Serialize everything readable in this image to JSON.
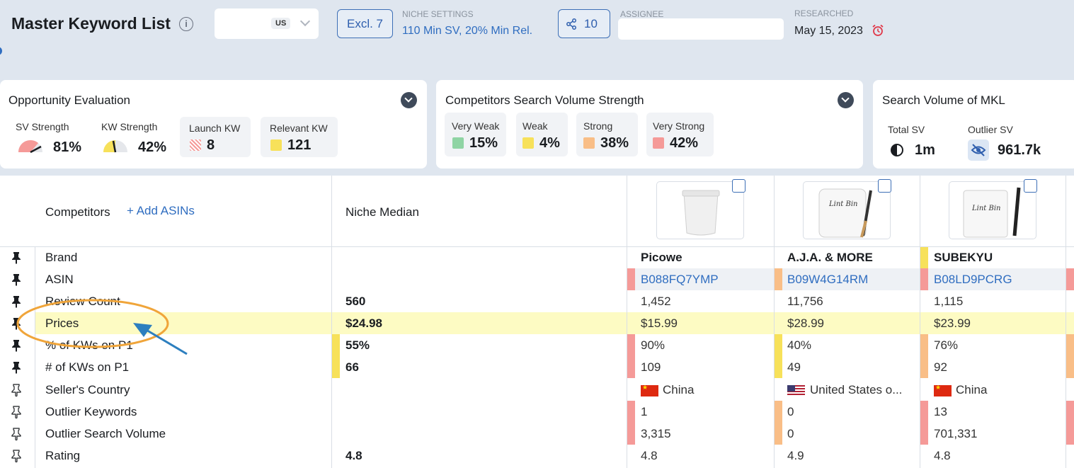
{
  "header": {
    "title": "Master Keyword List",
    "market_badge": "US",
    "excl_label": "Excl. 7",
    "niche_settings_label": "NICHE SETTINGS",
    "niche_settings_value": "110 Min SV, 20% Min Rel.",
    "share_count": "10",
    "assignee_label": "ASSIGNEE",
    "assignee_value": "",
    "researched_label": "RESEARCHED",
    "researched_date": "May 15, 2023"
  },
  "opportunity": {
    "title": "Opportunity Evaluation",
    "sv_strength_label": "SV Strength",
    "sv_strength_value": "81%",
    "kw_strength_label": "KW Strength",
    "kw_strength_value": "42%",
    "launch_kw_label": "Launch KW",
    "launch_kw_value": "8",
    "relevant_kw_label": "Relevant KW",
    "relevant_kw_value": "121"
  },
  "competitors_sv": {
    "title": "Competitors Search Volume Strength",
    "items": [
      {
        "label": "Very Weak",
        "value": "15%",
        "color": "#8fd4a4"
      },
      {
        "label": "Weak",
        "value": "4%",
        "color": "#f7e15a"
      },
      {
        "label": "Strong",
        "value": "38%",
        "color": "#f9be87"
      },
      {
        "label": "Very Strong",
        "value": "42%",
        "color": "#f59a98"
      }
    ]
  },
  "sv_mkl": {
    "title": "Search Volume of MKL",
    "total_label": "Total SV",
    "total_value": "1m",
    "outlier_label": "Outlier SV",
    "outlier_value": "961.7k"
  },
  "table": {
    "competitors_label": "Competitors",
    "add_asins_label": "+ Add ASINs",
    "niche_median_label": "Niche Median",
    "rows": [
      {
        "label": "Brand",
        "median": ""
      },
      {
        "label": "ASIN",
        "median": ""
      },
      {
        "label": "Review Count",
        "median": "560"
      },
      {
        "label": "Prices",
        "median": "$24.98"
      },
      {
        "label": "% of KWs on P1",
        "median": "55%"
      },
      {
        "label": "# of KWs on P1",
        "median": "66"
      },
      {
        "label": "Seller's Country",
        "median": ""
      },
      {
        "label": "Outlier Keywords",
        "median": ""
      },
      {
        "label": "Outlier Search Volume",
        "median": ""
      },
      {
        "label": "Rating",
        "median": "4.8"
      }
    ],
    "products": [
      {
        "brand": "Picowe",
        "asin": "B088FQ7YMP",
        "reviews": "1,452",
        "price": "$15.99",
        "kw_pct": "90%",
        "kw_count": "109",
        "country": "China",
        "outlier_kw": "1",
        "outlier_sv": "3,315",
        "rating": "4.8"
      },
      {
        "brand": "A.J.A. & MORE",
        "asin": "B09W4G14RM",
        "reviews": "11,756",
        "price": "$28.99",
        "kw_pct": "40%",
        "kw_count": "49",
        "country": "United States o...",
        "outlier_kw": "0",
        "outlier_sv": "0",
        "rating": "4.9"
      },
      {
        "brand": "SUBEKYU",
        "asin": "B08LD9PCRG",
        "reviews": "1,115",
        "price": "$23.99",
        "kw_pct": "76%",
        "kw_count": "92",
        "country": "China",
        "outlier_kw": "13",
        "outlier_sv": "701,331",
        "rating": "4.8"
      }
    ],
    "product_images": [
      {
        "label": ""
      },
      {
        "label": "Lint Bin"
      },
      {
        "label": "Lint Bin"
      }
    ]
  },
  "colors": {
    "accent": "#2f6dc0",
    "highlight_row": "#fdfbc3",
    "bar_red": "#f59a98",
    "bar_yellow": "#f7e15a",
    "bar_orange": "#f9be87",
    "annotation": "#f0a53a",
    "arrow": "#2d7fbf"
  }
}
